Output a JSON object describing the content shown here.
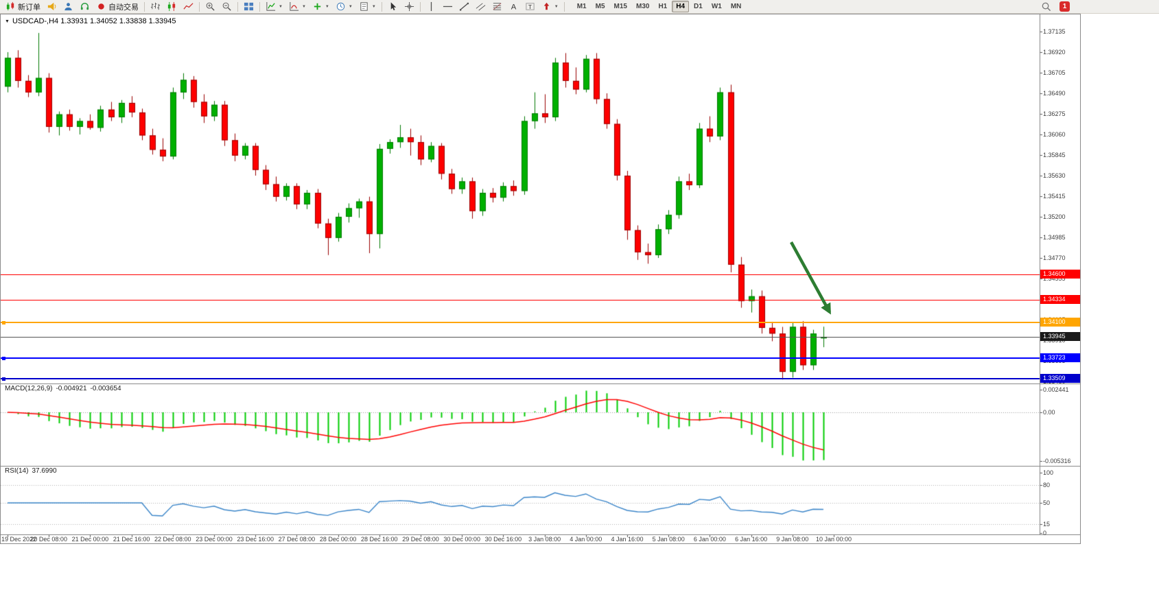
{
  "app": {
    "toolbar": {
      "caret_glyph": "▼",
      "items": [
        {
          "name": "new-order-button",
          "icon": "new-order",
          "label": "新订单"
        },
        {
          "name": "announcement-button",
          "icon": "horn"
        },
        {
          "name": "profile-button",
          "icon": "person"
        },
        {
          "name": "support-button",
          "icon": "headset"
        },
        {
          "name": "autotrade-button",
          "icon": "autotrade",
          "label": "自动交易"
        },
        {
          "sep": true
        },
        {
          "name": "bar-chart-button",
          "icon": "bars"
        },
        {
          "name": "candlestick-chart-button",
          "icon": "candles"
        },
        {
          "name": "line-chart-button",
          "icon": "linechart"
        },
        {
          "sep": true
        },
        {
          "name": "zoom-in-button",
          "icon": "zoom-in"
        },
        {
          "name": "zoom-out-button",
          "icon": "zoom-out"
        },
        {
          "sep": true
        },
        {
          "name": "tile-windows-button",
          "icon": "grid"
        },
        {
          "sep": true
        },
        {
          "name": "indicators-button",
          "icon": "indicator",
          "caret": true
        },
        {
          "name": "indicator-window-button",
          "icon": "indicator2",
          "caret": true
        },
        {
          "name": "add-object-button",
          "icon": "plus",
          "caret": true
        },
        {
          "name": "periods-button",
          "icon": "clock",
          "caret": true
        },
        {
          "name": "templates-button",
          "icon": "template",
          "caret": true
        },
        {
          "sep": true
        },
        {
          "name": "cursor-button",
          "icon": "cursor"
        },
        {
          "name": "crosshair-button",
          "icon": "crosshair"
        },
        {
          "sep": true
        },
        {
          "name": "vertical-line-button",
          "icon": "vline"
        },
        {
          "name": "horizontal-line-button",
          "icon": "hline"
        },
        {
          "name": "trendline-button",
          "icon": "trend"
        },
        {
          "name": "equidistant-channel-button",
          "icon": "channel"
        },
        {
          "name": "fibonacci-button",
          "icon": "fibo"
        },
        {
          "name": "text-button",
          "icon": "textA"
        },
        {
          "name": "label-button",
          "icon": "textT"
        },
        {
          "name": "arrows-button",
          "icon": "arrowmark",
          "caret": true
        },
        {
          "sep": true
        }
      ],
      "timeframes": [
        "M1",
        "M5",
        "M15",
        "M30",
        "H1",
        "H4",
        "D1",
        "W1",
        "MN"
      ],
      "active_timeframe": "H4",
      "right_items": [
        {
          "name": "search-button",
          "icon": "search"
        },
        {
          "name": "notification-badge",
          "label": "1"
        }
      ]
    },
    "window": {
      "symbol_dropdown_glyph": "▼"
    }
  },
  "chart_data": {
    "type": "candlestick",
    "symbol": "USDCAD-",
    "timeframe": "H4",
    "title_text": "USDCAD-,H4 1.33931 1.34052 1.33838 1.33945",
    "ohlc_current": {
      "open": "1.33931",
      "high": "1.34052",
      "low": "1.33838",
      "close": "1.33945"
    },
    "price_axis_labels": [
      "1.37135",
      "1.36920",
      "1.36705",
      "1.36490",
      "1.36275",
      "1.36060",
      "1.35845",
      "1.35630",
      "1.35415",
      "1.35200",
      "1.34985",
      "1.34770",
      "1.34555",
      "1.34340",
      "1.34125",
      "1.33910",
      "1.33695",
      "1.33480"
    ],
    "y_range": {
      "top": 1.37135,
      "bottom": 1.33457
    },
    "x_label_every": 4,
    "x_labels": [
      "19 Dec 2022",
      "20 Dec 08:00",
      "21 Dec 00:00",
      "21 Dec 16:00",
      "22 Dec 08:00",
      "23 Dec 00:00",
      "23 Dec 16:00",
      "27 Dec 08:00",
      "28 Dec 00:00",
      "28 Dec 16:00",
      "29 Dec 08:00",
      "30 Dec 00:00",
      "30 Dec 16:00",
      "3 Jan 08:00",
      "4 Jan 00:00",
      "4 Jan 16:00",
      "5 Jan 08:00",
      "6 Jan 00:00",
      "6 Jan 16:00",
      "9 Jan 08:00",
      "10 Jan 00:00"
    ],
    "candles": [
      [
        1.3656,
        1.3692,
        1.365,
        1.3686
      ],
      [
        1.3686,
        1.3694,
        1.3655,
        1.3662
      ],
      [
        1.3662,
        1.3668,
        1.3645,
        1.365
      ],
      [
        1.365,
        1.3712,
        1.3646,
        1.3665
      ],
      [
        1.3665,
        1.367,
        1.3608,
        1.3614
      ],
      [
        1.3614,
        1.363,
        1.3605,
        1.3627
      ],
      [
        1.3627,
        1.3632,
        1.361,
        1.3614
      ],
      [
        1.3614,
        1.3623,
        1.3606,
        1.362
      ],
      [
        1.362,
        1.3627,
        1.3611,
        1.3613
      ],
      [
        1.3613,
        1.3636,
        1.3609,
        1.3632
      ],
      [
        1.3632,
        1.364,
        1.362,
        1.3624
      ],
      [
        1.3624,
        1.3642,
        1.3618,
        1.3639
      ],
      [
        1.3639,
        1.3646,
        1.3624,
        1.3629
      ],
      [
        1.3629,
        1.3633,
        1.36,
        1.3605
      ],
      [
        1.3605,
        1.3612,
        1.3585,
        1.359
      ],
      [
        1.359,
        1.3602,
        1.3578,
        1.3583
      ],
      [
        1.3583,
        1.3655,
        1.358,
        1.365
      ],
      [
        1.365,
        1.367,
        1.3643,
        1.3663
      ],
      [
        1.3663,
        1.3667,
        1.3634,
        1.364
      ],
      [
        1.364,
        1.3648,
        1.3618,
        1.3625
      ],
      [
        1.3625,
        1.3641,
        1.362,
        1.3637
      ],
      [
        1.3637,
        1.3641,
        1.3594,
        1.36
      ],
      [
        1.36,
        1.3607,
        1.3578,
        1.3584
      ],
      [
        1.3584,
        1.3597,
        1.358,
        1.3594
      ],
      [
        1.3594,
        1.3597,
        1.3563,
        1.3569
      ],
      [
        1.3569,
        1.3574,
        1.3548,
        1.3554
      ],
      [
        1.3554,
        1.3562,
        1.3536,
        1.3541
      ],
      [
        1.3541,
        1.3555,
        1.3537,
        1.3552
      ],
      [
        1.3552,
        1.3555,
        1.3528,
        1.3533
      ],
      [
        1.3533,
        1.3548,
        1.3528,
        1.3545
      ],
      [
        1.3545,
        1.3549,
        1.3508,
        1.3513
      ],
      [
        1.3513,
        1.3518,
        1.348,
        1.3498
      ],
      [
        1.3498,
        1.3524,
        1.3494,
        1.352
      ],
      [
        1.352,
        1.3534,
        1.3514,
        1.3529
      ],
      [
        1.3529,
        1.3539,
        1.3519,
        1.3536
      ],
      [
        1.3536,
        1.3541,
        1.3482,
        1.3502
      ],
      [
        1.3502,
        1.3596,
        1.3487,
        1.3591
      ],
      [
        1.3591,
        1.3601,
        1.3586,
        1.3598
      ],
      [
        1.3598,
        1.3616,
        1.3592,
        1.3603
      ],
      [
        1.3603,
        1.3612,
        1.3584,
        1.3598
      ],
      [
        1.3598,
        1.3605,
        1.3574,
        1.358
      ],
      [
        1.358,
        1.3598,
        1.3577,
        1.3594
      ],
      [
        1.3594,
        1.3597,
        1.3559,
        1.3565
      ],
      [
        1.3565,
        1.357,
        1.3544,
        1.3549
      ],
      [
        1.3549,
        1.3561,
        1.3544,
        1.3557
      ],
      [
        1.3557,
        1.3561,
        1.3518,
        1.3526
      ],
      [
        1.3526,
        1.3549,
        1.3521,
        1.3545
      ],
      [
        1.3545,
        1.355,
        1.3535,
        1.354
      ],
      [
        1.354,
        1.3556,
        1.3536,
        1.3552
      ],
      [
        1.3552,
        1.3558,
        1.3542,
        1.3547
      ],
      [
        1.3547,
        1.3625,
        1.3543,
        1.362
      ],
      [
        1.362,
        1.365,
        1.3612,
        1.3628
      ],
      [
        1.3628,
        1.3648,
        1.3618,
        1.3624
      ],
      [
        1.3624,
        1.3686,
        1.362,
        1.3681
      ],
      [
        1.3681,
        1.3691,
        1.3655,
        1.3662
      ],
      [
        1.3662,
        1.3676,
        1.3648,
        1.3653
      ],
      [
        1.3653,
        1.3689,
        1.365,
        1.3685
      ],
      [
        1.3685,
        1.3691,
        1.3638,
        1.3643
      ],
      [
        1.3643,
        1.3649,
        1.3612,
        1.3617
      ],
      [
        1.3617,
        1.3622,
        1.3558,
        1.3563
      ],
      [
        1.3563,
        1.3568,
        1.3496,
        1.3506
      ],
      [
        1.3506,
        1.3511,
        1.3475,
        1.3483
      ],
      [
        1.3483,
        1.3492,
        1.3471,
        1.348
      ],
      [
        1.348,
        1.3512,
        1.3477,
        1.3507
      ],
      [
        1.3507,
        1.3527,
        1.3502,
        1.3522
      ],
      [
        1.3522,
        1.3562,
        1.3518,
        1.3557
      ],
      [
        1.3557,
        1.3565,
        1.3548,
        1.3553
      ],
      [
        1.3553,
        1.3618,
        1.355,
        1.3612
      ],
      [
        1.3612,
        1.3625,
        1.3598,
        1.3604
      ],
      [
        1.3604,
        1.3655,
        1.36,
        1.365
      ],
      [
        1.365,
        1.3658,
        1.3462,
        1.347
      ],
      [
        1.347,
        1.3478,
        1.3425,
        1.3432
      ],
      [
        1.3432,
        1.3444,
        1.342,
        1.3437
      ],
      [
        1.3437,
        1.3443,
        1.3398,
        1.3404
      ],
      [
        1.3404,
        1.341,
        1.339,
        1.3398
      ],
      [
        1.3398,
        1.3405,
        1.335,
        1.3358
      ],
      [
        1.3358,
        1.341,
        1.3352,
        1.3405
      ],
      [
        1.3405,
        1.3411,
        1.336,
        1.3365
      ],
      [
        1.3365,
        1.3402,
        1.336,
        1.3398
      ],
      [
        1.33931,
        1.34052,
        1.33838,
        1.33945
      ]
    ],
    "colors": {
      "up": "#00b000",
      "up_border": "#007800",
      "down": "#fe0000",
      "down_border": "#990000",
      "background": "#ffffff"
    },
    "hlines": [
      {
        "price": 1.346,
        "label": "1.34600",
        "color": "#ff0000",
        "thickness": 1,
        "handle": false
      },
      {
        "price": 1.34334,
        "label": "1.34334",
        "color": "#ff0000",
        "thickness": 1,
        "handle": false
      },
      {
        "price": 1.341,
        "label": "1.34100",
        "color": "#ffa500",
        "thickness": 2,
        "handle": true
      },
      {
        "price": 1.33945,
        "label": "1.33945",
        "color": "#555555",
        "badge": "#1a1a1a",
        "thickness": 1,
        "current": true,
        "handle": false
      },
      {
        "price": 1.33723,
        "label": "1.33723",
        "color": "#0000ff",
        "thickness": 2,
        "handle": true
      },
      {
        "price": 1.33509,
        "label": "1.33509",
        "color": "#0000cc",
        "thickness": 2,
        "handle": true
      }
    ],
    "macd": {
      "label": "MACD(12,26,9)",
      "value_main": "-0.004921",
      "value_signal": "-0.003654",
      "params": [
        12,
        26,
        9
      ],
      "axis_labels": [
        "0.002441",
        "0.00",
        "-0.005316"
      ],
      "range": {
        "top": 0.002441,
        "bottom": -0.005316
      },
      "histogram_color": "#00cc00",
      "signal_color": "#ff0000"
    },
    "rsi": {
      "label": "RSI(14)",
      "value": "37.6990",
      "period": 14,
      "axis_labels": [
        "100",
        "80",
        "50",
        "15",
        "0"
      ],
      "levels": [
        80,
        50,
        15
      ],
      "range": {
        "top": 100,
        "bottom": 0
      },
      "line_color": "#3a85c9",
      "level_color": "#b0b0b0"
    },
    "arrow_annotation": {
      "color": "#2d7d32",
      "direction": "down-right",
      "points_at_price": 1.341
    }
  }
}
